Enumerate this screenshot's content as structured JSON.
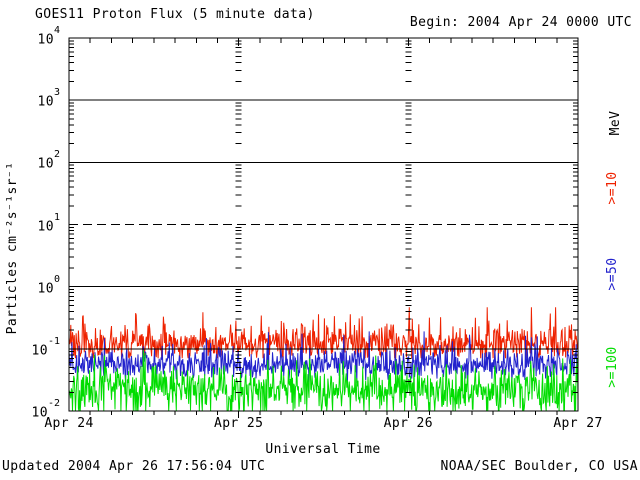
{
  "chart_data": {
    "type": "line",
    "title": "GOES11 Proton Flux (5 minute data)",
    "begin_label": "Begin: 2004 Apr 24 0000 UTC",
    "xlabel": "Universal Time",
    "ylabel": "Particles cm⁻²s⁻¹sr⁻¹",
    "right_axis_label": "MeV",
    "x_start": "2004 Apr 24 0000 UTC",
    "x_days": 3,
    "sample_interval_minutes": 5,
    "samples_per_day": 288,
    "xticks": [
      "Apr 24",
      "Apr 25",
      "Apr 26",
      "Apr 27"
    ],
    "x_minor_tick_hours": 3,
    "ylim": [
      0.01,
      10000
    ],
    "yticks": [
      {
        "label": "10⁴",
        "base": "10",
        "exp": "4",
        "value": 10000
      },
      {
        "label": "10³",
        "base": "10",
        "exp": "3",
        "value": 1000
      },
      {
        "label": "10²",
        "base": "10",
        "exp": "2",
        "value": 100
      },
      {
        "label": "10¹",
        "base": "10",
        "exp": "1",
        "value": 10
      },
      {
        "label": "10⁰",
        "base": "10",
        "exp": "0",
        "value": 1
      },
      {
        "label": "10⁻¹",
        "base": "10",
        "exp": "-1",
        "value": 0.1
      },
      {
        "label": "10⁻²",
        "base": "10",
        "exp": "-2",
        "value": 0.01
      }
    ],
    "gridlines": [
      {
        "value": 1000,
        "style": "solid"
      },
      {
        "value": 100,
        "style": "solid"
      },
      {
        "value": 10,
        "style": "dashed"
      },
      {
        "value": 1,
        "style": "solid"
      },
      {
        "value": 0.1,
        "style": "solid"
      }
    ],
    "grid_note": "horizontal lines at decades; dashed line marks the 10 pfu alert threshold; columns of minor log ticks drawn at interior day boundaries",
    "legend_position": "right edge, rotated 90°",
    "series": [
      {
        "name": ">=10 MeV",
        "label": ">=10",
        "color": "#ee2200",
        "approx_mean": 0.12,
        "approx_min": 0.07,
        "approx_max": 0.47,
        "gen": {
          "log_mu": -0.92,
          "log_sigma": 0.12,
          "spike_p": 0.12,
          "spike_amp": 0.5,
          "dip_p": 0.05,
          "dip_amp": 0.15,
          "log_clamp": [
            -1.15,
            -0.33
          ]
        }
      },
      {
        "name": ">=50 MeV",
        "label": ">=50",
        "color": "#2222cc",
        "approx_mean": 0.056,
        "approx_min": 0.028,
        "approx_max": 0.19,
        "gen": {
          "log_mu": -1.25,
          "log_sigma": 0.12,
          "spike_p": 0.1,
          "spike_amp": 0.42,
          "dip_p": 0.06,
          "dip_amp": 0.2,
          "log_clamp": [
            -1.55,
            -0.72
          ]
        }
      },
      {
        "name": ">=100 MeV",
        "label": ">=100",
        "color": "#00dd00",
        "approx_mean": 0.023,
        "approx_min": 0.01,
        "approx_max": 0.095,
        "gen": {
          "log_mu": -1.63,
          "log_sigma": 0.16,
          "spike_p": 0.1,
          "spike_amp": 0.38,
          "dip_p": 0.22,
          "dip_amp": 0.45,
          "log_clamp": [
            -2.0,
            -1.02
          ]
        }
      }
    ],
    "noise_seed": 20040424
  },
  "footer": {
    "updated": "Updated 2004 Apr 26 17:56:04 UTC",
    "source": "NOAA/SEC Boulder, CO USA"
  }
}
